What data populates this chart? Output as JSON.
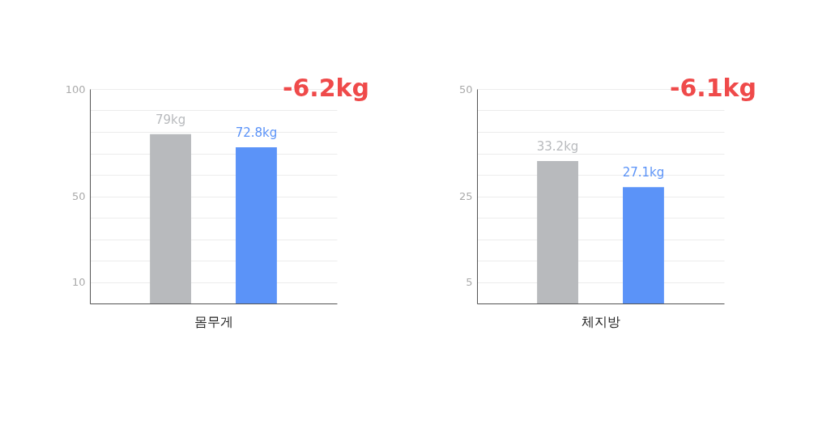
{
  "chart_data": [
    {
      "type": "bar",
      "xlabel": "몸무게",
      "categories": [
        null,
        null
      ],
      "values": [
        79,
        72.8
      ],
      "colors": [
        "#b8babd",
        "#5b93f8"
      ],
      "value_labels": [
        "79kg",
        "72.8kg"
      ],
      "ylim": [
        0,
        100
      ],
      "yticks": [
        {
          "value": 10,
          "label": "10"
        },
        {
          "value": 20,
          "label": null
        },
        {
          "value": 30,
          "label": null
        },
        {
          "value": 40,
          "label": null
        },
        {
          "value": 50,
          "label": "50"
        },
        {
          "value": 60,
          "label": null
        },
        {
          "value": 70,
          "label": null
        },
        {
          "value": 80,
          "label": null
        },
        {
          "value": 90,
          "label": null
        },
        {
          "value": 100,
          "label": "100"
        }
      ],
      "grid": "y",
      "annotations": [
        "-6.2kg"
      ]
    },
    {
      "type": "bar",
      "xlabel": "체지방",
      "categories": [
        null,
        null
      ],
      "values": [
        33.2,
        27.1
      ],
      "colors": [
        "#b8babd",
        "#5b93f8"
      ],
      "value_labels": [
        "33.2kg",
        "27.1kg"
      ],
      "ylim": [
        0,
        50
      ],
      "yticks": [
        {
          "value": 5,
          "label": "5"
        },
        {
          "value": 10,
          "label": null
        },
        {
          "value": 15,
          "label": null
        },
        {
          "value": 20,
          "label": null
        },
        {
          "value": 25,
          "label": "25"
        },
        {
          "value": 30,
          "label": null
        },
        {
          "value": 35,
          "label": null
        },
        {
          "value": 40,
          "label": null
        },
        {
          "value": 45,
          "label": null
        },
        {
          "value": 50,
          "label": "50"
        }
      ],
      "grid": "y",
      "annotations": [
        "-6.1kg"
      ]
    }
  ]
}
